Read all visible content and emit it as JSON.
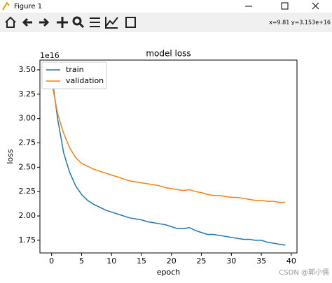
{
  "window": {
    "title": "Figure 1",
    "coordinates": "x=9.81 y=3.153e+16",
    "watermark": "CSDN @郭小儒"
  },
  "chart_data": {
    "type": "line",
    "title": "model loss",
    "x_label": "epoch",
    "y_label": "loss",
    "offset_label": "1e16",
    "x": [
      0,
      1,
      2,
      3,
      4,
      5,
      6,
      7,
      8,
      9,
      10,
      11,
      12,
      13,
      14,
      15,
      16,
      17,
      18,
      19,
      20,
      21,
      22,
      23,
      24,
      25,
      26,
      27,
      28,
      29,
      30,
      31,
      32,
      33,
      34,
      35,
      36,
      37,
      38,
      39
    ],
    "series": [
      {
        "name": "train",
        "color": "#1f77b4",
        "values": [
          3.45,
          3.0,
          2.65,
          2.45,
          2.31,
          2.22,
          2.16,
          2.12,
          2.09,
          2.06,
          2.04,
          2.02,
          2.0,
          1.98,
          1.97,
          1.96,
          1.94,
          1.93,
          1.92,
          1.91,
          1.89,
          1.87,
          1.87,
          1.88,
          1.85,
          1.83,
          1.81,
          1.81,
          1.8,
          1.79,
          1.78,
          1.77,
          1.76,
          1.76,
          1.75,
          1.75,
          1.73,
          1.72,
          1.71,
          1.7
        ]
      },
      {
        "name": "validation",
        "color": "#ff7f0e",
        "values": [
          3.38,
          3.05,
          2.85,
          2.7,
          2.6,
          2.54,
          2.51,
          2.48,
          2.46,
          2.44,
          2.42,
          2.4,
          2.38,
          2.36,
          2.35,
          2.34,
          2.33,
          2.32,
          2.31,
          2.29,
          2.28,
          2.27,
          2.26,
          2.27,
          2.25,
          2.24,
          2.22,
          2.21,
          2.21,
          2.2,
          2.19,
          2.19,
          2.18,
          2.17,
          2.16,
          2.16,
          2.15,
          2.15,
          2.14,
          2.14
        ]
      }
    ],
    "xlim": [
      -1.95,
      40.95
    ],
    "ylim": [
      1.62,
      3.6
    ],
    "xticks": [
      0,
      5,
      10,
      15,
      20,
      25,
      30,
      35,
      40
    ],
    "yticks": [
      1.75,
      {
        "value": 2,
        "label": "2.00"
      },
      2.25,
      {
        "value": 2.5,
        "label": "2.50"
      },
      2.75,
      {
        "value": 3,
        "label": "3.00"
      },
      3.25,
      {
        "value": 3.5,
        "label": "3.50"
      }
    ],
    "legend": "upper left"
  }
}
